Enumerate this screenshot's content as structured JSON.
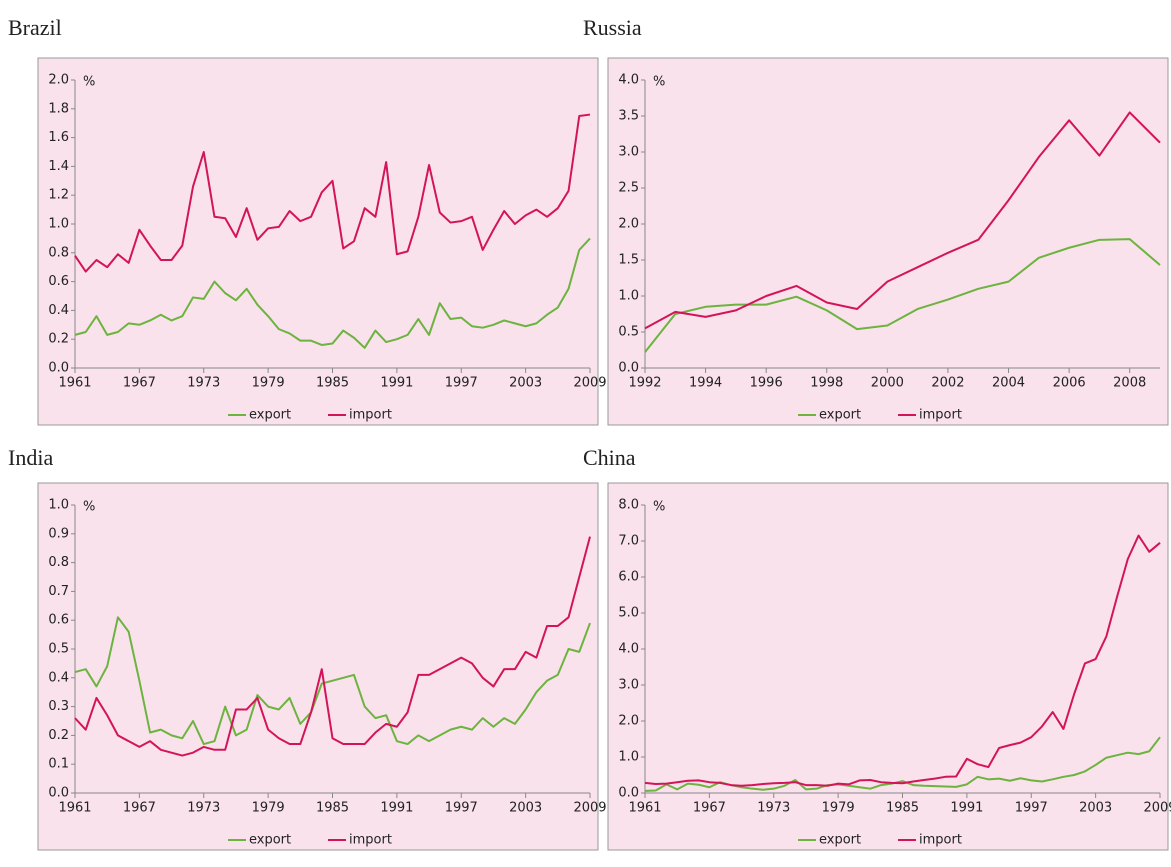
{
  "chart_data": [
    {
      "type": "line",
      "title": "Brazil",
      "y_label": "%",
      "x": [
        1961,
        1962,
        1963,
        1964,
        1965,
        1966,
        1967,
        1968,
        1969,
        1970,
        1971,
        1972,
        1973,
        1974,
        1975,
        1976,
        1977,
        1978,
        1979,
        1980,
        1981,
        1982,
        1983,
        1984,
        1985,
        1986,
        1987,
        1988,
        1989,
        1990,
        1991,
        1992,
        1993,
        1994,
        1995,
        1996,
        1997,
        1998,
        1999,
        2000,
        2001,
        2002,
        2003,
        2004,
        2005,
        2006,
        2007,
        2008,
        2009
      ],
      "xlim": [
        1961,
        2009
      ],
      "xticks": [
        1961,
        1967,
        1973,
        1979,
        1985,
        1991,
        1997,
        2003,
        2009
      ],
      "ylim": [
        0,
        2
      ],
      "yticks": [
        {
          "value": 0,
          "label": "0.0"
        },
        0.2,
        0.4,
        0.6,
        0.8,
        {
          "value": 1,
          "label": "1.0"
        },
        1.2,
        1.4,
        1.6,
        1.8,
        {
          "value": 2,
          "label": "2.0"
        }
      ],
      "series": [
        {
          "name": "export",
          "color": "#6cb33f",
          "values": [
            0.23,
            0.25,
            0.36,
            0.23,
            0.25,
            0.31,
            0.3,
            0.33,
            0.37,
            0.33,
            0.36,
            0.49,
            0.48,
            0.6,
            0.52,
            0.47,
            0.55,
            0.44,
            0.36,
            0.27,
            0.24,
            0.19,
            0.19,
            0.16,
            0.17,
            0.26,
            0.21,
            0.14,
            0.26,
            0.18,
            0.2,
            0.23,
            0.34,
            0.23,
            0.45,
            0.34,
            0.35,
            0.29,
            0.28,
            0.3,
            0.33,
            0.31,
            0.29,
            0.31,
            0.37,
            0.42,
            0.55,
            0.82,
            0.9
          ]
        },
        {
          "name": "import",
          "color": "#d4145a",
          "values": [
            0.78,
            0.67,
            0.75,
            0.7,
            0.79,
            0.73,
            0.96,
            0.85,
            0.75,
            0.75,
            0.85,
            1.26,
            1.5,
            1.05,
            1.04,
            0.91,
            1.11,
            0.89,
            0.97,
            0.98,
            1.09,
            1.02,
            1.05,
            1.22,
            1.3,
            0.83,
            0.88,
            1.11,
            1.05,
            1.43,
            0.79,
            0.81,
            1.05,
            1.41,
            1.08,
            1.01,
            1.02,
            1.05,
            0.82,
            0.96,
            1.09,
            1.0,
            1.06,
            1.1,
            1.05,
            1.11,
            1.23,
            1.75,
            1.76
          ]
        }
      ]
    },
    {
      "type": "line",
      "title": "Russia",
      "y_label": "%",
      "x": [
        1992,
        1993,
        1994,
        1995,
        1996,
        1997,
        1998,
        1999,
        2000,
        2001,
        2002,
        2003,
        2004,
        2005,
        2006,
        2007,
        2008,
        2009
      ],
      "xlim": [
        1992,
        2009
      ],
      "xticks": [
        1992,
        1994,
        1996,
        1998,
        2000,
        2002,
        2004,
        2006,
        2008
      ],
      "ylim": [
        0,
        4
      ],
      "yticks": [
        {
          "value": 0,
          "label": "0.0"
        },
        0.5,
        {
          "value": 1,
          "label": "1.0"
        },
        1.5,
        {
          "value": 2,
          "label": "2.0"
        },
        2.5,
        {
          "value": 3,
          "label": "3.0"
        },
        3.5,
        {
          "value": 4,
          "label": "4.0"
        }
      ],
      "series": [
        {
          "name": "export",
          "color": "#6cb33f",
          "values": [
            0.22,
            0.75,
            0.85,
            0.88,
            0.88,
            0.99,
            0.8,
            0.54,
            0.59,
            0.82,
            0.95,
            1.1,
            1.2,
            1.53,
            1.67,
            1.78,
            1.79,
            1.43
          ]
        },
        {
          "name": "import",
          "color": "#d4145a",
          "values": [
            0.55,
            0.78,
            0.71,
            0.8,
            1.0,
            1.14,
            0.91,
            0.82,
            1.2,
            1.4,
            1.6,
            1.78,
            2.33,
            2.93,
            3.44,
            2.95,
            3.55,
            3.13
          ]
        }
      ]
    },
    {
      "type": "line",
      "title": "India",
      "y_label": "%",
      "x": [
        1961,
        1962,
        1963,
        1964,
        1965,
        1966,
        1967,
        1968,
        1969,
        1970,
        1971,
        1972,
        1973,
        1974,
        1975,
        1976,
        1977,
        1978,
        1979,
        1980,
        1981,
        1982,
        1983,
        1984,
        1985,
        1986,
        1987,
        1988,
        1989,
        1990,
        1991,
        1992,
        1993,
        1994,
        1995,
        1996,
        1997,
        1998,
        1999,
        2000,
        2001,
        2002,
        2003,
        2004,
        2005,
        2006,
        2007,
        2008,
        2009
      ],
      "xlim": [
        1961,
        2009
      ],
      "xticks": [
        1961,
        1967,
        1973,
        1979,
        1985,
        1991,
        1997,
        2003,
        2009
      ],
      "ylim": [
        0,
        1
      ],
      "yticks": [
        {
          "value": 0,
          "label": "0.0"
        },
        0.1,
        0.2,
        0.3,
        0.4,
        0.5,
        0.6,
        0.7,
        0.8,
        0.9,
        {
          "value": 1,
          "label": "1.0"
        }
      ],
      "series": [
        {
          "name": "export",
          "color": "#6cb33f",
          "values": [
            0.42,
            0.43,
            0.37,
            0.44,
            0.61,
            0.56,
            0.39,
            0.21,
            0.22,
            0.2,
            0.19,
            0.25,
            0.17,
            0.18,
            0.3,
            0.2,
            0.22,
            0.34,
            0.3,
            0.29,
            0.33,
            0.24,
            0.28,
            0.38,
            0.39,
            0.4,
            0.41,
            0.3,
            0.26,
            0.27,
            0.18,
            0.17,
            0.2,
            0.18,
            0.2,
            0.22,
            0.23,
            0.22,
            0.26,
            0.23,
            0.26,
            0.24,
            0.29,
            0.35,
            0.39,
            0.41,
            0.5,
            0.49,
            0.59
          ]
        },
        {
          "name": "import",
          "color": "#d4145a",
          "values": [
            0.26,
            0.22,
            0.33,
            0.27,
            0.2,
            0.18,
            0.16,
            0.18,
            0.15,
            0.14,
            0.13,
            0.14,
            0.16,
            0.15,
            0.15,
            0.29,
            0.29,
            0.33,
            0.22,
            0.19,
            0.17,
            0.17,
            0.28,
            0.43,
            0.19,
            0.17,
            0.17,
            0.17,
            0.21,
            0.24,
            0.23,
            0.28,
            0.41,
            0.41,
            0.43,
            0.45,
            0.47,
            0.45,
            0.4,
            0.37,
            0.43,
            0.43,
            0.49,
            0.47,
            0.58,
            0.58,
            0.61,
            0.75,
            0.89
          ]
        }
      ]
    },
    {
      "type": "line",
      "title": "China",
      "y_label": "%",
      "x": [
        1961,
        1962,
        1963,
        1964,
        1965,
        1966,
        1967,
        1968,
        1969,
        1970,
        1971,
        1972,
        1973,
        1974,
        1975,
        1976,
        1977,
        1978,
        1979,
        1980,
        1981,
        1982,
        1983,
        1984,
        1985,
        1986,
        1987,
        1988,
        1989,
        1990,
        1991,
        1992,
        1993,
        1994,
        1995,
        1996,
        1997,
        1998,
        1999,
        2000,
        2001,
        2002,
        2003,
        2004,
        2005,
        2006,
        2007,
        2008,
        2009
      ],
      "xlim": [
        1961,
        2009
      ],
      "xticks": [
        1961,
        1967,
        1973,
        1979,
        1985,
        1991,
        1997,
        2003,
        2009
      ],
      "ylim": [
        0,
        8
      ],
      "yticks": [
        {
          "value": 0,
          "label": "0.0"
        },
        {
          "value": 1,
          "label": "1.0"
        },
        {
          "value": 2,
          "label": "2.0"
        },
        {
          "value": 3,
          "label": "3.0"
        },
        {
          "value": 4,
          "label": "4.0"
        },
        {
          "value": 5,
          "label": "5.0"
        },
        {
          "value": 6,
          "label": "6.0"
        },
        {
          "value": 7,
          "label": "7.0"
        },
        {
          "value": 8,
          "label": "8.0"
        }
      ],
      "series": [
        {
          "name": "export",
          "color": "#6cb33f",
          "values": [
            0.06,
            0.07,
            0.24,
            0.1,
            0.26,
            0.23,
            0.16,
            0.3,
            0.22,
            0.16,
            0.12,
            0.09,
            0.12,
            0.2,
            0.36,
            0.1,
            0.12,
            0.22,
            0.24,
            0.2,
            0.16,
            0.12,
            0.22,
            0.26,
            0.33,
            0.22,
            0.2,
            0.19,
            0.18,
            0.17,
            0.24,
            0.45,
            0.38,
            0.4,
            0.34,
            0.41,
            0.35,
            0.32,
            0.38,
            0.45,
            0.5,
            0.6,
            0.78,
            0.98,
            1.05,
            1.12,
            1.08,
            1.16,
            1.55
          ]
        },
        {
          "name": "import",
          "color": "#d4145a",
          "values": [
            0.28,
            0.25,
            0.26,
            0.3,
            0.34,
            0.35,
            0.3,
            0.28,
            0.22,
            0.2,
            0.22,
            0.25,
            0.27,
            0.28,
            0.3,
            0.22,
            0.22,
            0.2,
            0.26,
            0.24,
            0.35,
            0.36,
            0.3,
            0.28,
            0.27,
            0.32,
            0.36,
            0.4,
            0.45,
            0.46,
            0.95,
            0.8,
            0.72,
            1.25,
            1.33,
            1.4,
            1.55,
            1.85,
            2.25,
            1.78,
            2.75,
            3.6,
            3.72,
            4.35,
            5.45,
            6.5,
            7.15,
            6.7,
            6.95
          ]
        }
      ]
    }
  ]
}
